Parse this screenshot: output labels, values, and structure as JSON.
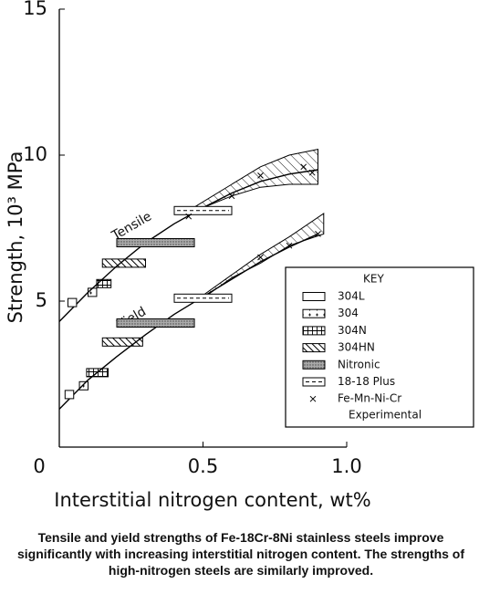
{
  "chart_data": {
    "type": "line",
    "xlabel": "Interstitial nitrogen content, wt%",
    "ylabel": "Strength, 10³ MPa",
    "xlim": [
      0,
      1
    ],
    "xticks": [
      0,
      0.5,
      {
        "value": 1,
        "label": "1.0"
      }
    ],
    "ylim": [
      0,
      15
    ],
    "yticks": [
      5,
      10,
      15
    ],
    "color": "#000000",
    "series": [
      {
        "name": "Tensile",
        "x": [
          0,
          0.1,
          0.2,
          0.3,
          0.4,
          0.5,
          0.6,
          0.7,
          0.8,
          0.9
        ],
        "values": [
          4.3,
          5.3,
          6.2,
          7.0,
          7.65,
          8.2,
          8.7,
          9.1,
          9.35,
          9.5
        ]
      },
      {
        "name": "Yield",
        "x": [
          0,
          0.1,
          0.2,
          0.3,
          0.4,
          0.5,
          0.6,
          0.7,
          0.8,
          0.9
        ],
        "values": [
          1.3,
          2.3,
          3.1,
          3.85,
          4.55,
          5.15,
          5.75,
          6.35,
          6.85,
          7.3
        ]
      }
    ],
    "bands": [
      {
        "x": [
          0.45,
          0.6,
          0.7,
          0.8,
          0.9
        ],
        "upper": [
          8.1,
          9.0,
          9.6,
          10.0,
          10.2
        ],
        "lower": [
          8.0,
          8.6,
          8.9,
          9.0,
          9.0
        ]
      },
      {
        "x": [
          0.5,
          0.6,
          0.7,
          0.8,
          0.92
        ],
        "upper": [
          5.2,
          5.9,
          6.6,
          7.2,
          8.0
        ],
        "lower": [
          5.1,
          5.8,
          6.3,
          6.9,
          7.3
        ]
      }
    ],
    "key_title": "KEY",
    "key": [
      {
        "label": "304L",
        "pattern": "plain",
        "boxes": [
          [
            0.03,
            0.06,
            4.95
          ],
          [
            0.02,
            0.05,
            1.8
          ]
        ]
      },
      {
        "label": "304",
        "pattern": "plus",
        "boxes": [
          [
            0.1,
            0.13,
            5.3
          ],
          [
            0.07,
            0.1,
            2.1
          ]
        ]
      },
      {
        "label": "304N",
        "pattern": "grid",
        "boxes": [
          [
            0.13,
            0.18,
            5.6
          ],
          [
            0.095,
            0.17,
            2.55
          ]
        ]
      },
      {
        "label": "304HN",
        "pattern": "hatch",
        "boxes": [
          [
            0.15,
            0.3,
            6.3
          ],
          [
            0.15,
            0.29,
            3.6
          ]
        ]
      },
      {
        "label": "Nitronic",
        "pattern": "dots",
        "boxes": [
          [
            0.2,
            0.47,
            7.0
          ],
          [
            0.2,
            0.47,
            4.25
          ]
        ]
      },
      {
        "label": "18-18 Plus",
        "pattern": "dash",
        "boxes": [
          [
            0.4,
            0.6,
            8.1
          ],
          [
            0.4,
            0.6,
            5.1
          ]
        ]
      },
      {
        "label": "Fe-Mn-Ni-Cr",
        "label2": "Experimental",
        "pattern": "x",
        "x": [
          0.45,
          0.6,
          0.7,
          0.85,
          0.88,
          0.7,
          0.8,
          0.9
        ],
        "values": [
          7.9,
          8.6,
          9.3,
          9.6,
          9.4,
          6.5,
          6.9,
          7.3
        ]
      }
    ]
  },
  "caption": "Tensile and yield strengths of Fe-18Cr-8Ni stainless steels improve significantly with increasing interstitial nitrogen content. The strengths of high-nitrogen steels are similarly improved."
}
